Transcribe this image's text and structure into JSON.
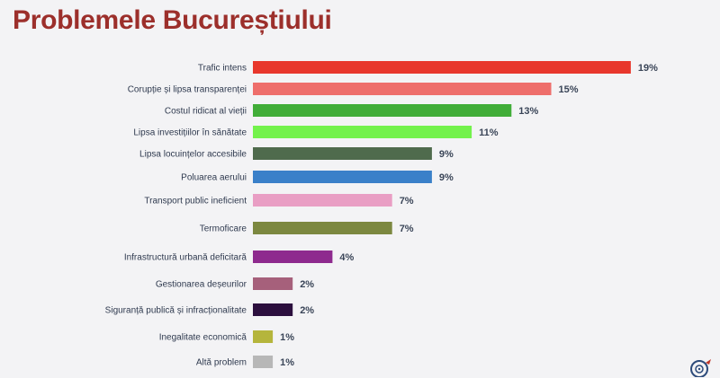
{
  "title": "Problemele Bucureștiului",
  "chart_data": {
    "type": "bar",
    "orientation": "horizontal",
    "title": "Problemele Bucureștiului",
    "categories": [
      "Trafic intens",
      "Corupție și lipsa transparenței",
      "Costul ridicat al vieții",
      "Lipsa investițiilor în sănătate",
      "Lipsa locuințelor accesibile",
      "Poluarea aerului",
      "Transport public ineficient",
      "Termoficare",
      "Infrastructură urbană deficitară",
      "Gestionarea deșeurilor",
      "Siguranță publică și infracționalitate",
      "Inegalitate economică",
      "Altă problem"
    ],
    "values": [
      19,
      15,
      13,
      11,
      9,
      9,
      7,
      7,
      4,
      2,
      2,
      1,
      1
    ],
    "value_labels": [
      "19%",
      "15%",
      "13%",
      "11%",
      "9%",
      "9%",
      "7%",
      "7%",
      "4%",
      "2%",
      "2%",
      "1%",
      "1%"
    ],
    "colors": [
      "#e8372c",
      "#ee6e6b",
      "#41ad38",
      "#73f24c",
      "#4f6b4d",
      "#3a80c9",
      "#e99ec4",
      "#7c8840",
      "#8e2a8e",
      "#a6607b",
      "#2c0f3e",
      "#b5b53c",
      "#b7b7b7"
    ],
    "unit": "%",
    "xlabel": "",
    "ylabel": "",
    "grid": false,
    "legend": "none"
  },
  "logo_icon": "target-logo-icon"
}
